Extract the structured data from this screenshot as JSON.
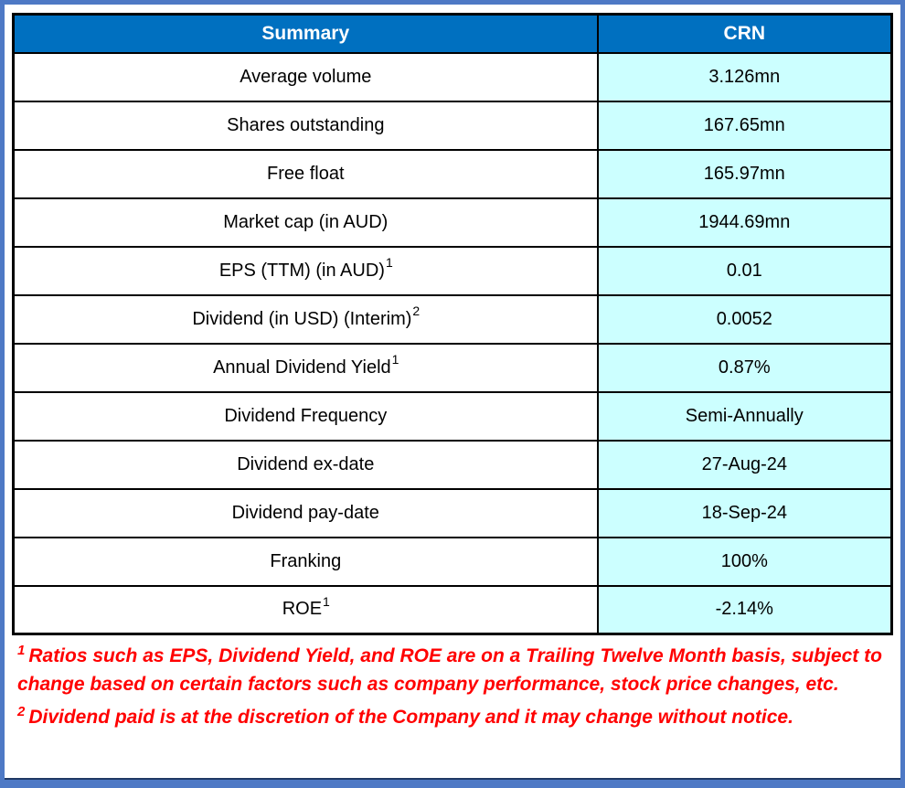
{
  "page": {
    "frame_color": "#4E79C5",
    "background": "#FFFFFF"
  },
  "table": {
    "header": {
      "summary_label": "Summary",
      "ticker_label": "CRN",
      "bg_color": "#0070C0",
      "text_color": "#FFFFFF"
    },
    "value_column_bg": "#CCFFFF",
    "rows": [
      {
        "label": "Average volume",
        "sup": "",
        "value": "3.126mn"
      },
      {
        "label": "Shares outstanding",
        "sup": "",
        "value": "167.65mn"
      },
      {
        "label": "Free float",
        "sup": "",
        "value": "165.97mn"
      },
      {
        "label": "Market cap (in AUD)",
        "sup": "",
        "value": "1944.69mn"
      },
      {
        "label": "EPS (TTM) (in AUD)",
        "sup": "1",
        "value": "0.01"
      },
      {
        "label": "Dividend (in USD) (Interim)",
        "sup": "2",
        "value": "0.0052"
      },
      {
        "label": "Annual Dividend Yield",
        "sup": "1",
        "value": "0.87%"
      },
      {
        "label": "Dividend Frequency",
        "sup": "",
        "value": "Semi-Annually"
      },
      {
        "label": "Dividend ex-date",
        "sup": "",
        "value": "27-Aug-24"
      },
      {
        "label": "Dividend pay-date",
        "sup": "",
        "value": "18-Sep-24"
      },
      {
        "label": "Franking",
        "sup": "",
        "value": "100%"
      },
      {
        "label": "ROE",
        "sup": "1",
        "value": "-2.14%"
      }
    ]
  },
  "footnotes": {
    "text_color": "#FF0000",
    "items": [
      {
        "marker": "1",
        "text": "Ratios such as EPS, Dividend Yield, and ROE are on a Trailing Twelve Month basis, subject to change based on certain factors such as company performance, stock price changes, etc."
      },
      {
        "marker": "2",
        "text": "Dividend paid is at the discretion of the Company and it may change without notice."
      }
    ]
  }
}
